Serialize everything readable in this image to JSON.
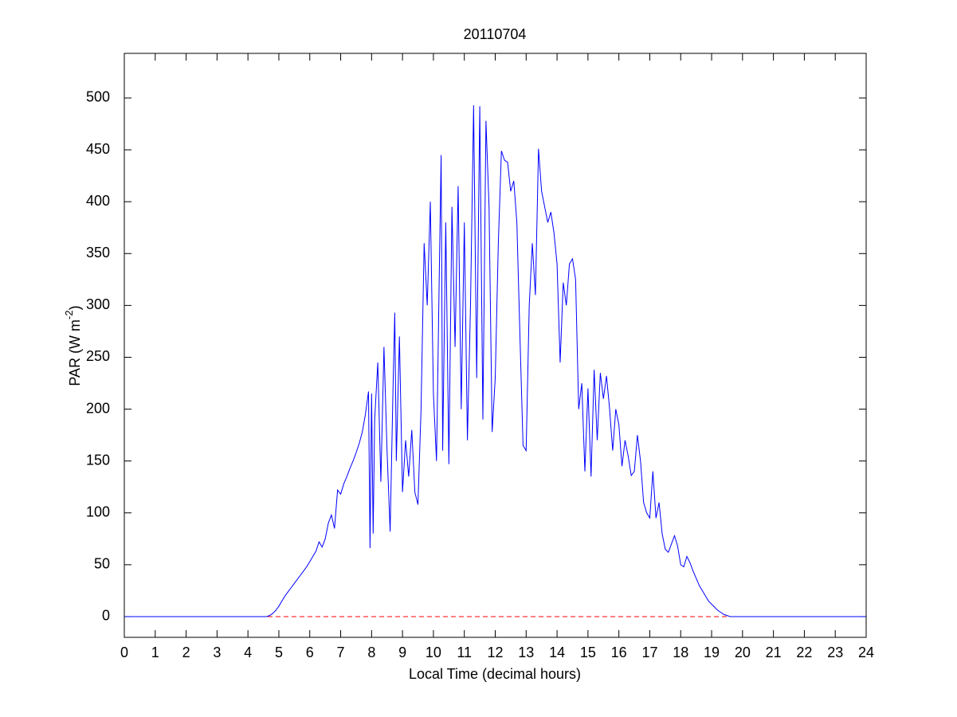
{
  "chart_data": {
    "type": "line",
    "title": "20110704",
    "xlabel": "Local Time (decimal hours)",
    "ylabel": [
      "PAR (W m",
      "-2",
      ")"
    ],
    "x": [
      0,
      4.6,
      4.7,
      4.8,
      4.9,
      5.0,
      5.1,
      5.2,
      5.3,
      5.4,
      5.5,
      5.6,
      5.7,
      5.8,
      5.9,
      6.0,
      6.1,
      6.2,
      6.3,
      6.4,
      6.5,
      6.6,
      6.7,
      6.8,
      6.9,
      7.0,
      7.1,
      7.2,
      7.3,
      7.4,
      7.5,
      7.6,
      7.7,
      7.8,
      7.9,
      7.95,
      8.0,
      8.05,
      8.1,
      8.2,
      8.3,
      8.4,
      8.5,
      8.6,
      8.7,
      8.75,
      8.8,
      8.9,
      9.0,
      9.1,
      9.2,
      9.3,
      9.4,
      9.5,
      9.6,
      9.7,
      9.8,
      9.9,
      10.0,
      10.1,
      10.2,
      10.25,
      10.3,
      10.4,
      10.5,
      10.6,
      10.7,
      10.8,
      10.9,
      11.0,
      11.1,
      11.2,
      11.3,
      11.4,
      11.5,
      11.6,
      11.7,
      11.8,
      11.9,
      12.0,
      12.1,
      12.2,
      12.3,
      12.4,
      12.5,
      12.6,
      12.7,
      12.8,
      12.9,
      13.0,
      13.1,
      13.2,
      13.3,
      13.4,
      13.5,
      13.6,
      13.7,
      13.8,
      13.9,
      14.0,
      14.1,
      14.2,
      14.3,
      14.4,
      14.5,
      14.6,
      14.7,
      14.8,
      14.9,
      15.0,
      15.1,
      15.2,
      15.3,
      15.4,
      15.5,
      15.6,
      15.7,
      15.8,
      15.9,
      16.0,
      16.1,
      16.2,
      16.3,
      16.4,
      16.5,
      16.6,
      16.7,
      16.8,
      16.9,
      17.0,
      17.1,
      17.2,
      17.3,
      17.4,
      17.5,
      17.6,
      17.7,
      17.8,
      17.9,
      18.0,
      18.1,
      18.2,
      18.3,
      18.4,
      18.5,
      18.6,
      18.7,
      18.8,
      18.9,
      19.0,
      19.1,
      19.2,
      19.3,
      19.4,
      19.5,
      19.6,
      19.8,
      24
    ],
    "series": [
      {
        "color": "#0000ff",
        "values": [
          0,
          0,
          1,
          3,
          6,
          10,
          15,
          20,
          24,
          28,
          32,
          36,
          40,
          44,
          48,
          53,
          58,
          63,
          72,
          67,
          75,
          90,
          98,
          85,
          122,
          118,
          128,
          135,
          143,
          150,
          158,
          167,
          178,
          195,
          217,
          66,
          215,
          80,
          190,
          245,
          130,
          260,
          160,
          82,
          230,
          293,
          150,
          270,
          120,
          170,
          135,
          180,
          120,
          108,
          200,
          360,
          300,
          400,
          215,
          150,
          350,
          445,
          160,
          380,
          147,
          395,
          260,
          415,
          200,
          380,
          170,
          300,
          493,
          230,
          492,
          190,
          478,
          395,
          178,
          230,
          360,
          449,
          440,
          438,
          410,
          420,
          380,
          270,
          165,
          160,
          300,
          360,
          310,
          451,
          410,
          395,
          380,
          390,
          370,
          340,
          245,
          322,
          300,
          340,
          345,
          325,
          200,
          225,
          140,
          220,
          135,
          238,
          170,
          235,
          210,
          232,
          200,
          160,
          200,
          185,
          145,
          170,
          155,
          136,
          140,
          175,
          150,
          110,
          100,
          95,
          140,
          95,
          110,
          80,
          65,
          62,
          70,
          78,
          68,
          50,
          48,
          58,
          52,
          44,
          37,
          30,
          25,
          20,
          15,
          12,
          9,
          6,
          4,
          2,
          1,
          0,
          0,
          0
        ]
      }
    ],
    "reference_line": {
      "value": 0,
      "color": "#ff0000",
      "style": "dashed"
    },
    "xlim": [
      0,
      24
    ],
    "xticks": [
      0,
      1,
      2,
      3,
      4,
      5,
      6,
      7,
      8,
      9,
      10,
      11,
      12,
      13,
      14,
      15,
      16,
      17,
      18,
      19,
      20,
      21,
      22,
      23,
      24
    ],
    "ylim": [
      -20,
      543
    ],
    "yticks": [
      0,
      50,
      100,
      150,
      200,
      250,
      300,
      350,
      400,
      450,
      500
    ]
  }
}
